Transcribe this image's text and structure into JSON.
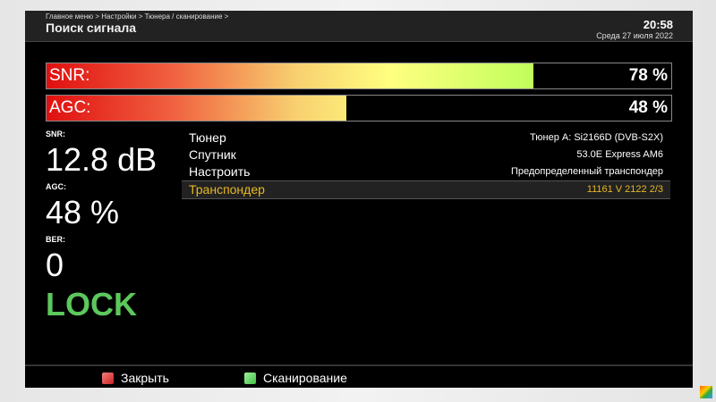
{
  "header": {
    "breadcrumb": "Главное меню > Настройки > Тюнера / сканирование >",
    "title": "Поиск сигнала",
    "time": "20:58",
    "date": "Среда 27 июля 2022"
  },
  "bars": [
    {
      "label": "SNR:",
      "value": "78 %",
      "percent": 78
    },
    {
      "label": "AGC:",
      "value": "48 %",
      "percent": 48
    }
  ],
  "stats": [
    {
      "label": "SNR:",
      "value": "12.8 dB"
    },
    {
      "label": "AGC:",
      "value": "48 %"
    },
    {
      "label": "BER:",
      "value": "0"
    }
  ],
  "status": "LOCK",
  "status_color": "#5cc85c",
  "menu": [
    {
      "key": "Тюнер",
      "value": "Тюнер A: Si2166D (DVB-S2X)"
    },
    {
      "key": "Спутник",
      "value": "53.0E Express AM6"
    },
    {
      "key": "Настроить",
      "value": "Предопределенный транспондер"
    },
    {
      "key": "Транспондер",
      "value": "11161 V 2122 2/3",
      "selected": true
    }
  ],
  "footer": {
    "red_label": "Закрыть",
    "green_label": "Сканирование",
    "red_color": "#cc2020",
    "green_color": "#40c040"
  }
}
